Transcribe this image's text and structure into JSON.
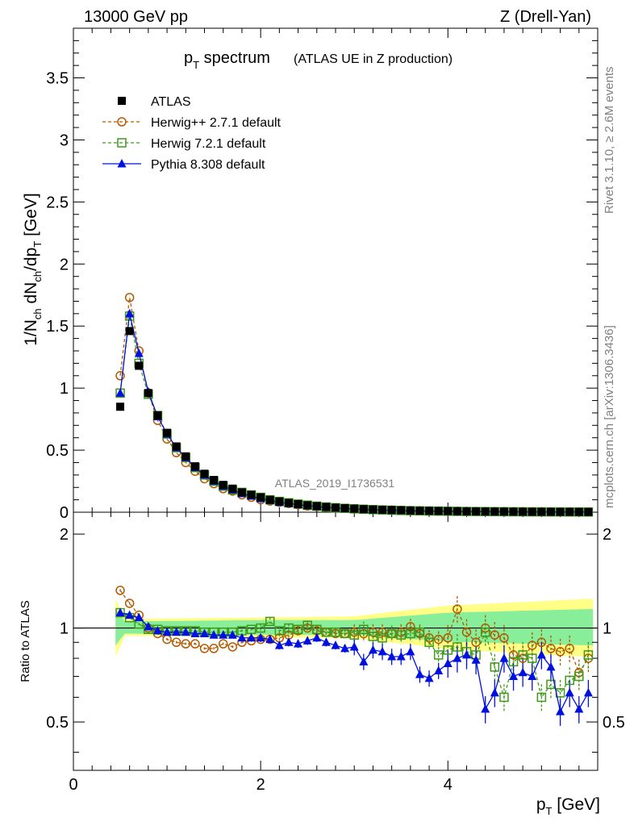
{
  "header": {
    "left": "13000 GeV pp",
    "right": "Z (Drell-Yan)"
  },
  "plot_title": {
    "main": "p",
    "main_sub": "T",
    "main_suffix": " spectrum",
    "paren": "(ATLAS UE in Z production)"
  },
  "watermark": "ATLAS_2019_I1736531",
  "side_text": {
    "rivet": "Rivet 3.1.10, ≥ 2.6M events",
    "mcplots": "mcplots.cern.ch [arXiv:1306.3436]"
  },
  "axes": {
    "ylabel_top": "1/N_ch dN_ch/dp_T [GeV]",
    "ylabel_bottom": "Ratio to ATLAS",
    "xlabel": "p_T [GeV]",
    "x_ticks": [
      "0",
      "2",
      "4"
    ],
    "top_y_ticks": [
      "0",
      "0.5",
      "1",
      "1.5",
      "2",
      "2.5",
      "3",
      "3.5"
    ],
    "bottom_y_ticks": [
      "0.5",
      "1",
      "2"
    ]
  },
  "legend": [
    {
      "label": "ATLAS",
      "color": "#000000",
      "marker": "filled-square",
      "line": "none"
    },
    {
      "label": "Herwig++ 2.7.1 default",
      "color": "#b35900",
      "marker": "open-circle",
      "line": "dashed"
    },
    {
      "label": "Herwig 7.2.1 default",
      "color": "#3f9a1a",
      "marker": "open-square",
      "line": "dashed"
    },
    {
      "label": "Pythia 8.308 default",
      "color": "#0010e0",
      "marker": "filled-triangle",
      "line": "solid"
    }
  ],
  "chart_data": [
    {
      "type": "scatter",
      "panel": "main",
      "xlim": [
        0,
        5.6
      ],
      "ylim": [
        0,
        3.9
      ],
      "x": [
        0.5,
        0.6,
        0.7,
        0.8,
        0.9,
        1.0,
        1.1,
        1.2,
        1.3,
        1.4,
        1.5,
        1.6,
        1.7,
        1.8,
        1.9,
        2.0,
        2.1,
        2.2,
        2.3,
        2.4,
        2.5,
        2.6,
        2.7,
        2.8,
        2.9,
        3.0,
        3.1,
        3.2,
        3.3,
        3.4,
        3.5,
        3.6,
        3.7,
        3.8,
        3.9,
        4.0,
        4.1,
        4.2,
        4.3,
        4.4,
        4.5,
        4.6,
        4.7,
        4.8,
        4.9,
        5.0,
        5.1,
        5.2,
        5.3,
        5.4,
        5.5
      ],
      "series": [
        {
          "name": "ATLAS",
          "values": [
            0.85,
            1.46,
            1.18,
            0.96,
            0.78,
            0.64,
            0.53,
            0.45,
            0.37,
            0.31,
            0.26,
            0.22,
            0.19,
            0.16,
            0.14,
            0.12,
            0.1,
            0.087,
            0.075,
            0.065,
            0.056,
            0.049,
            0.043,
            0.037,
            0.033,
            0.029,
            0.025,
            0.022,
            0.02,
            0.018,
            0.016,
            0.014,
            0.012,
            0.011,
            0.01,
            0.009,
            0.008,
            0.007,
            0.0065,
            0.006,
            0.0055,
            0.005,
            0.0045,
            0.004,
            0.0037,
            0.0034,
            0.0031,
            0.0028,
            0.0026,
            0.0024,
            0.0022
          ]
        },
        {
          "name": "Herwig++ 2.7.1 default",
          "values": [
            1.1,
            1.73,
            1.3,
            0.96,
            0.74,
            0.59,
            0.48,
            0.4,
            0.33,
            0.27,
            0.23,
            0.19,
            0.17,
            0.14,
            0.12,
            0.1,
            0.09,
            0.08,
            0.07,
            0.06,
            0.05,
            0.045,
            0.04,
            0.035,
            0.03,
            0.027,
            0.024,
            0.021,
            0.019,
            0.017,
            0.015,
            0.013,
            0.012,
            0.01,
            0.009,
            0.008,
            0.007,
            0.0065,
            0.006,
            0.0055,
            0.005,
            0.0046,
            0.0042,
            0.0038,
            0.0034,
            0.003,
            0.0028,
            0.0026,
            0.0024,
            0.0022,
            0.002
          ]
        },
        {
          "name": "Herwig 7.2.1 default",
          "values": [
            0.96,
            1.58,
            1.2,
            0.95,
            0.78,
            0.63,
            0.52,
            0.44,
            0.36,
            0.3,
            0.25,
            0.21,
            0.18,
            0.16,
            0.14,
            0.12,
            0.1,
            0.087,
            0.076,
            0.066,
            0.057,
            0.049,
            0.042,
            0.036,
            0.031,
            0.027,
            0.024,
            0.021,
            0.018,
            0.016,
            0.014,
            0.012,
            0.011,
            0.01,
            0.009,
            0.008,
            0.007,
            0.006,
            0.0055,
            0.005,
            0.0045,
            0.004,
            0.0035,
            0.0032,
            0.003,
            0.0028,
            0.0026,
            0.0024,
            0.0022,
            0.002,
            0.0018
          ]
        },
        {
          "name": "Pythia 8.308 default",
          "values": [
            0.96,
            1.6,
            1.28,
            0.97,
            0.77,
            0.63,
            0.52,
            0.44,
            0.36,
            0.3,
            0.25,
            0.21,
            0.18,
            0.15,
            0.13,
            0.11,
            0.095,
            0.08,
            0.07,
            0.06,
            0.052,
            0.045,
            0.039,
            0.034,
            0.029,
            0.025,
            0.022,
            0.019,
            0.017,
            0.015,
            0.013,
            0.011,
            0.01,
            0.009,
            0.008,
            0.007,
            0.006,
            0.0055,
            0.005,
            0.0045,
            0.004,
            0.0035,
            0.003,
            0.0028,
            0.0026,
            0.0024,
            0.0022,
            0.002,
            0.0018,
            0.0016,
            0.0014
          ]
        }
      ]
    },
    {
      "type": "scatter",
      "panel": "ratio",
      "xlim": [
        0,
        5.6
      ],
      "ylim": [
        0.35,
        2.35
      ],
      "x": [
        0.5,
        0.6,
        0.7,
        0.8,
        0.9,
        1.0,
        1.1,
        1.2,
        1.3,
        1.4,
        1.5,
        1.6,
        1.7,
        1.8,
        1.9,
        2.0,
        2.1,
        2.2,
        2.3,
        2.4,
        2.5,
        2.6,
        2.7,
        2.8,
        2.9,
        3.0,
        3.1,
        3.2,
        3.3,
        3.4,
        3.5,
        3.6,
        3.7,
        3.8,
        3.9,
        4.0,
        4.1,
        4.2,
        4.3,
        4.4,
        4.5,
        4.6,
        4.7,
        4.8,
        4.9,
        5.0,
        5.1,
        5.2,
        5.3,
        5.4,
        5.5
      ],
      "reference_line": 1,
      "series": [
        {
          "name": "Herwig++ 2.7.1 default",
          "values": [
            1.32,
            1.2,
            1.1,
            1.0,
            0.96,
            0.92,
            0.9,
            0.89,
            0.89,
            0.86,
            0.86,
            0.89,
            0.87,
            0.9,
            0.91,
            0.92,
            0.92,
            0.93,
            0.95,
            0.98,
            1.0,
            0.98,
            0.97,
            0.96,
            0.96,
            0.97,
            0.96,
            0.97,
            0.97,
            0.96,
            0.97,
            1.01,
            0.96,
            0.93,
            0.92,
            0.93,
            1.15,
            0.97,
            0.9,
            1.0,
            0.95,
            0.93,
            0.82,
            0.8,
            0.88,
            0.9,
            0.86,
            0.84,
            0.86,
            0.72,
            0.8
          ]
        },
        {
          "name": "Herwig 7.2.1 default",
          "values": [
            1.12,
            1.08,
            1.03,
            0.99,
            0.99,
            0.98,
            0.98,
            0.98,
            0.98,
            0.97,
            0.97,
            0.97,
            0.97,
            0.98,
            0.99,
            1.0,
            1.05,
            0.98,
            1.0,
            0.99,
            1.02,
            0.99,
            0.97,
            0.97,
            0.96,
            0.95,
            0.99,
            0.94,
            0.93,
            0.96,
            0.95,
            0.96,
            0.97,
            0.9,
            0.82,
            0.85,
            0.87,
            0.84,
            0.82,
            0.97,
            0.75,
            0.6,
            0.78,
            0.82,
            0.8,
            0.6,
            0.66,
            0.62,
            0.68,
            0.7,
            0.82
          ]
        },
        {
          "name": "Pythia 8.308 default",
          "values": [
            1.12,
            1.1,
            1.08,
            1.01,
            0.98,
            0.97,
            0.97,
            0.97,
            0.96,
            0.96,
            0.95,
            0.95,
            0.95,
            0.93,
            0.93,
            0.93,
            0.92,
            0.88,
            0.9,
            0.89,
            0.91,
            0.93,
            0.9,
            0.88,
            0.86,
            0.87,
            0.78,
            0.85,
            0.84,
            0.81,
            0.81,
            0.84,
            0.71,
            0.69,
            0.73,
            0.77,
            0.8,
            0.82,
            0.79,
            0.55,
            0.62,
            0.8,
            0.7,
            0.72,
            0.7,
            0.82,
            0.75,
            0.54,
            0.62,
            0.55,
            0.62
          ]
        }
      ],
      "data_band_inner": [
        [
          0.5,
          0.05
        ],
        [
          2.0,
          0.06
        ],
        [
          3.0,
          0.06
        ],
        [
          4.0,
          0.12
        ],
        [
          5.0,
          0.14
        ],
        [
          5.5,
          0.15
        ]
      ],
      "data_band_outer": [
        [
          0.5,
          0.07
        ],
        [
          2.0,
          0.08
        ],
        [
          3.0,
          0.09
        ],
        [
          4.0,
          0.18
        ],
        [
          5.0,
          0.22
        ],
        [
          5.5,
          0.24
        ]
      ]
    }
  ]
}
